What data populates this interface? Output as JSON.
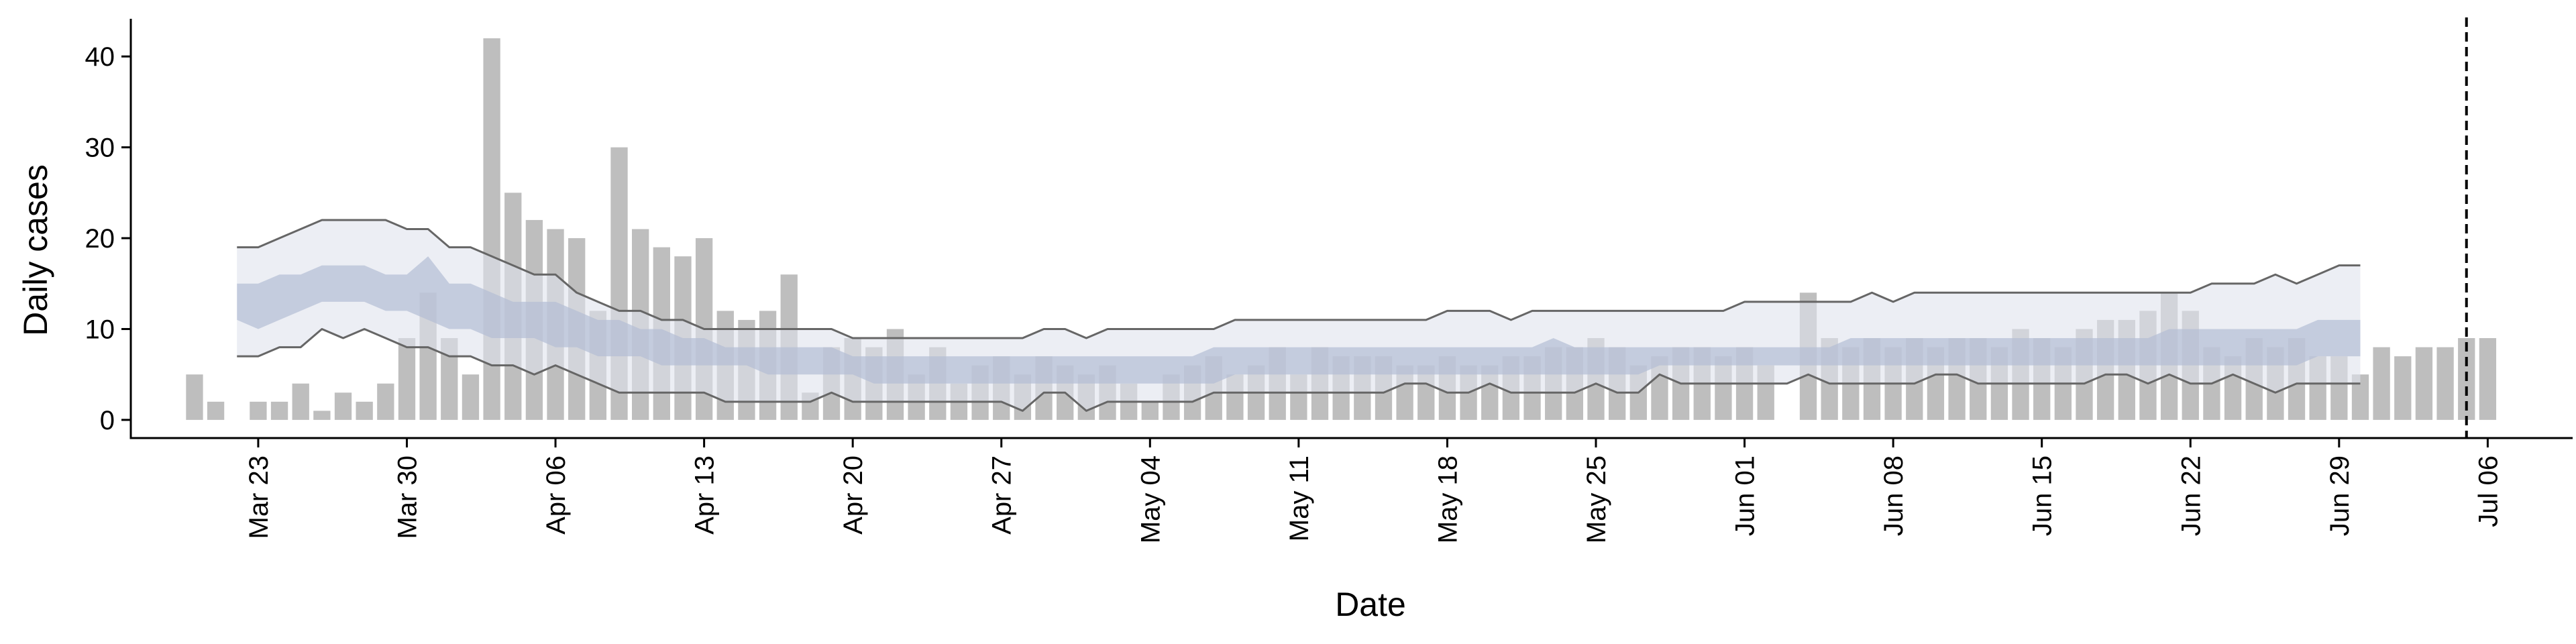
{
  "chart_data": {
    "type": "bar",
    "title": "",
    "xlabel": "Date",
    "ylabel": "Daily cases",
    "start_date": "2020-03-20",
    "xlim": [
      "2020-03-17",
      "2020-07-10"
    ],
    "ylim": [
      -2,
      44
    ],
    "grid": false,
    "x_ticks": [
      {
        "date": "2020-03-23",
        "label": "Mar 23"
      },
      {
        "date": "2020-03-30",
        "label": "Mar 30"
      },
      {
        "date": "2020-04-06",
        "label": "Apr 06"
      },
      {
        "date": "2020-04-13",
        "label": "Apr 13"
      },
      {
        "date": "2020-04-20",
        "label": "Apr 20"
      },
      {
        "date": "2020-04-27",
        "label": "Apr 27"
      },
      {
        "date": "2020-05-04",
        "label": "May 04"
      },
      {
        "date": "2020-05-11",
        "label": "May 11"
      },
      {
        "date": "2020-05-18",
        "label": "May 18"
      },
      {
        "date": "2020-05-25",
        "label": "May 25"
      },
      {
        "date": "2020-06-01",
        "label": "Jun 01"
      },
      {
        "date": "2020-06-08",
        "label": "Jun 08"
      },
      {
        "date": "2020-06-15",
        "label": "Jun 15"
      },
      {
        "date": "2020-06-22",
        "label": "Jun 22"
      },
      {
        "date": "2020-06-29",
        "label": "Jun 29"
      },
      {
        "date": "2020-07-06",
        "label": "Jul 06"
      }
    ],
    "y_ticks": [
      0,
      10,
      20,
      30,
      40
    ],
    "daily_cases": [
      5,
      2,
      0,
      2,
      2,
      4,
      1,
      3,
      2,
      4,
      9,
      14,
      9,
      5,
      42,
      25,
      22,
      21,
      20,
      12,
      30,
      21,
      19,
      18,
      20,
      12,
      11,
      12,
      16,
      3,
      8,
      9,
      8,
      10,
      5,
      8,
      4,
      6,
      7,
      5,
      7,
      6,
      5,
      6,
      4,
      2,
      5,
      6,
      7,
      5,
      6,
      8,
      5,
      8,
      7,
      7,
      7,
      6,
      6,
      7,
      6,
      6,
      7,
      7,
      8,
      8,
      9,
      8,
      6,
      7,
      8,
      8,
      7,
      8,
      6,
      0,
      14,
      9,
      8,
      9,
      8,
      9,
      8,
      9,
      9,
      8,
      10,
      9,
      8,
      10,
      11,
      11,
      12,
      14,
      12,
      8,
      7,
      9,
      8,
      9,
      7,
      7,
      5,
      8,
      7,
      8,
      8,
      9,
      9
    ],
    "band_dates": [
      "2020-03-22",
      "2020-06-20"
    ],
    "band_outer_upper": [
      19,
      19,
      20,
      21,
      22,
      22,
      22,
      22,
      21,
      21,
      19,
      19,
      18,
      17,
      16,
      16,
      14,
      13,
      12,
      12,
      11,
      11,
      10,
      10,
      10,
      10,
      10,
      10,
      10,
      9,
      9,
      9,
      9,
      9,
      9,
      9,
      9,
      9,
      10,
      10,
      9,
      10,
      10,
      10,
      10,
      10,
      10,
      11,
      11,
      11,
      11,
      11,
      11,
      11,
      11,
      11,
      11,
      12,
      12,
      12,
      11,
      12,
      12,
      12,
      12,
      12,
      12,
      12,
      12,
      12,
      12,
      13,
      13,
      13,
      13,
      13,
      13,
      14,
      13,
      14,
      14,
      14,
      14,
      14,
      14,
      14,
      14,
      14,
      14,
      14,
      14,
      14,
      14,
      15,
      15,
      15,
      16,
      15,
      16,
      17,
      17
    ],
    "band_inner_upper": [
      15,
      15,
      16,
      16,
      17,
      17,
      17,
      16,
      16,
      18,
      15,
      15,
      14,
      13,
      13,
      13,
      12,
      11,
      11,
      10,
      10,
      9,
      9,
      8,
      8,
      8,
      8,
      8,
      8,
      7,
      7,
      7,
      7,
      7,
      7,
      7,
      7,
      7,
      7,
      7,
      7,
      7,
      7,
      7,
      7,
      7,
      8,
      8,
      8,
      8,
      8,
      8,
      8,
      8,
      8,
      8,
      8,
      8,
      8,
      8,
      8,
      8,
      9,
      8,
      8,
      8,
      8,
      8,
      8,
      8,
      8,
      8,
      8,
      8,
      8,
      8,
      9,
      9,
      9,
      9,
      9,
      9,
      9,
      9,
      9,
      9,
      9,
      9,
      9,
      9,
      9,
      10,
      10,
      10,
      10,
      10,
      10,
      10,
      11,
      11,
      11
    ],
    "band_inner_lower": [
      11,
      10,
      11,
      12,
      13,
      13,
      13,
      12,
      12,
      11,
      10,
      10,
      9,
      9,
      9,
      8,
      8,
      7,
      7,
      7,
      6,
      6,
      6,
      6,
      6,
      5,
      5,
      5,
      5,
      5,
      4,
      4,
      4,
      4,
      4,
      4,
      4,
      4,
      4,
      4,
      4,
      4,
      4,
      4,
      4,
      4,
      4,
      5,
      5,
      5,
      5,
      5,
      5,
      5,
      5,
      5,
      5,
      5,
      5,
      5,
      5,
      5,
      5,
      5,
      5,
      5,
      5,
      6,
      6,
      6,
      6,
      6,
      6,
      6,
      6,
      6,
      6,
      6,
      6,
      6,
      6,
      6,
      6,
      6,
      6,
      6,
      6,
      6,
      6,
      6,
      6,
      6,
      6,
      6,
      6,
      6,
      6,
      6,
      7,
      7,
      7
    ],
    "band_outer_lower": [
      7,
      7,
      8,
      8,
      10,
      9,
      10,
      9,
      8,
      8,
      7,
      7,
      6,
      6,
      5,
      6,
      5,
      4,
      3,
      3,
      3,
      3,
      3,
      2,
      2,
      2,
      2,
      2,
      3,
      2,
      2,
      2,
      2,
      2,
      2,
      2,
      2,
      1,
      3,
      3,
      1,
      2,
      2,
      2,
      2,
      2,
      3,
      3,
      3,
      3,
      3,
      3,
      3,
      3,
      3,
      4,
      4,
      3,
      3,
      4,
      3,
      3,
      3,
      3,
      4,
      3,
      3,
      5,
      4,
      4,
      4,
      4,
      4,
      4,
      5,
      4,
      4,
      4,
      4,
      4,
      5,
      5,
      4,
      4,
      4,
      4,
      4,
      4,
      5,
      5,
      4,
      5,
      4,
      4,
      5,
      4,
      3,
      4,
      4,
      4,
      4
    ],
    "vline_date": "2020-07-05",
    "colors": {
      "bar": "#bebebe",
      "band_outer": "#dfe2ec",
      "band_inner": "#b3bdd4",
      "interval_line": "#666666",
      "vline": "#000000",
      "axis": "#000000"
    }
  }
}
